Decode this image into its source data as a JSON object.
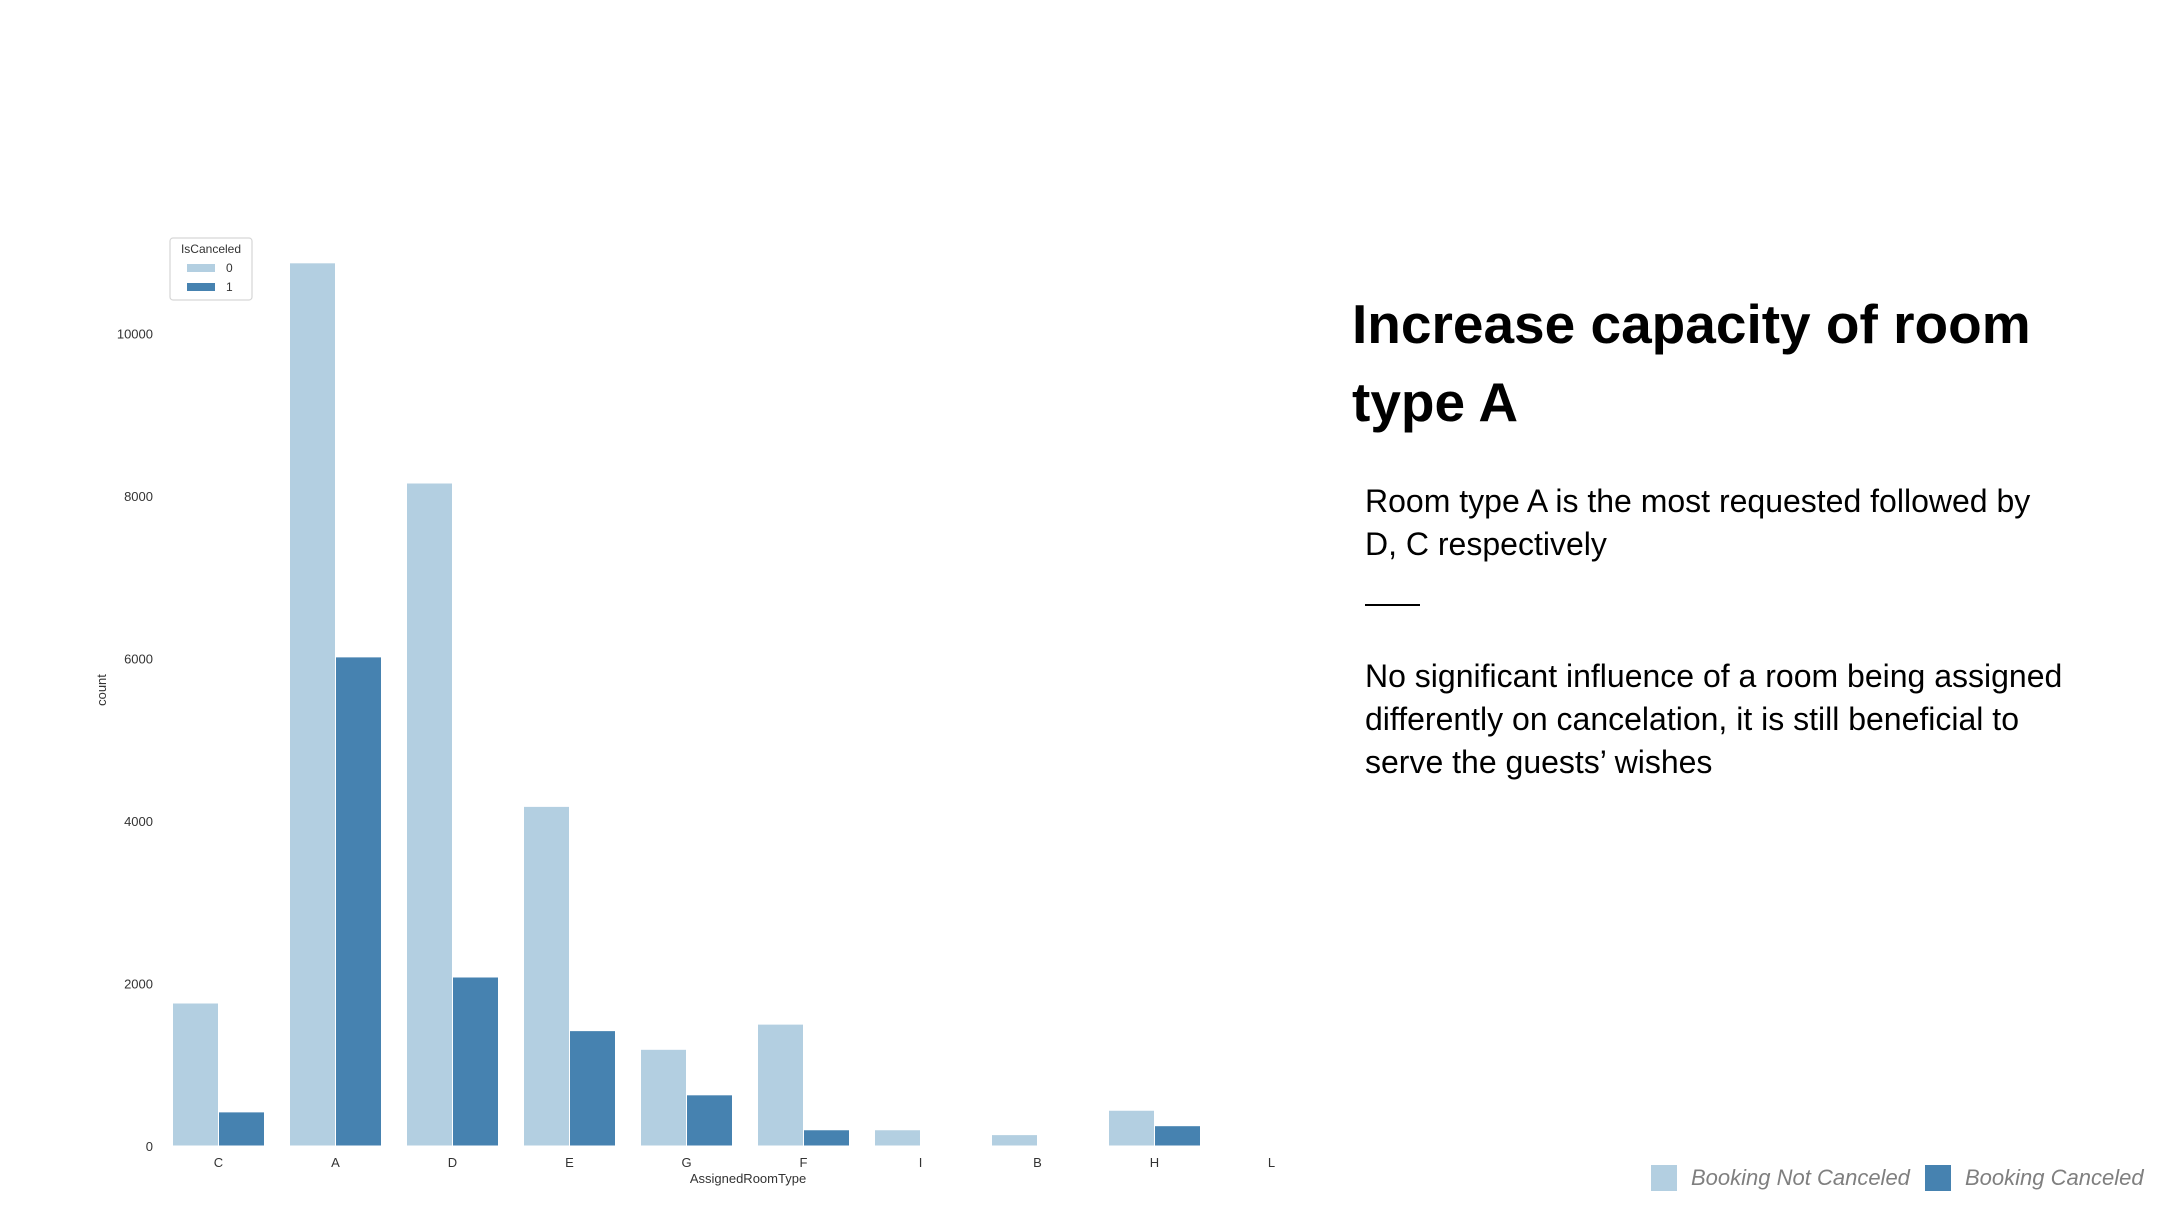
{
  "colors": {
    "not_canceled": "#b3cfe1",
    "canceled": "#4682b0"
  },
  "chart_data": {
    "type": "bar",
    "xlabel": "AssignedRoomType",
    "ylabel": "count",
    "categories": [
      "C",
      "A",
      "D",
      "E",
      "G",
      "F",
      "I",
      "B",
      "H",
      "L"
    ],
    "series": [
      {
        "name": "0",
        "values": [
          1760,
          10870,
          8160,
          4180,
          1190,
          1500,
          200,
          140,
          440,
          0
        ]
      },
      {
        "name": "1",
        "values": [
          420,
          6020,
          2080,
          1420,
          630,
          200,
          0,
          0,
          250,
          0
        ]
      }
    ],
    "ylim": [
      0,
      11200
    ],
    "yticks": [
      0,
      2000,
      4000,
      6000,
      8000,
      10000
    ],
    "legend": {
      "title": "IsCanceled",
      "placement": "top-left"
    },
    "grid": false
  },
  "title": "Increase capacity of room type A",
  "paragraphs": [
    "Room type A is the most requested followed by D, C respectively",
    "No significant influence of a room being assigned differently on cancelation, it is still beneficial to serve the guests’ wishes"
  ],
  "bottom_legend": {
    "not_canceled_label": "Booking Not Canceled",
    "canceled_label": "Booking Canceled"
  }
}
